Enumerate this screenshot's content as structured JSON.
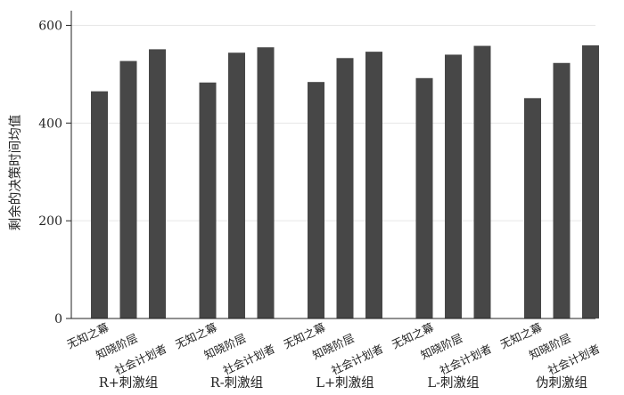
{
  "chart_data": {
    "type": "bar",
    "ylabel": "剩余的决策时间均值",
    "ylim": [
      0,
      630
    ],
    "yticks": [
      0,
      200,
      400,
      600
    ],
    "grid": true,
    "groups": [
      {
        "label": "R+刺激组",
        "categories": [
          "无知之幕",
          "知晓阶层",
          "社会计划者"
        ],
        "values": [
          465,
          527,
          551
        ]
      },
      {
        "label": "R-刺激组",
        "categories": [
          "无知之幕",
          "知晓阶层",
          "社会计划者"
        ],
        "values": [
          483,
          544,
          555
        ]
      },
      {
        "label": "L+刺激组",
        "categories": [
          "无知之幕",
          "知晓阶层",
          "社会计划者"
        ],
        "values": [
          484,
          533,
          546
        ]
      },
      {
        "label": "L-刺激组",
        "categories": [
          "无知之幕",
          "知晓阶层",
          "社会计划者"
        ],
        "values": [
          492,
          540,
          558
        ]
      },
      {
        "label": "伪刺激组",
        "categories": [
          "无知之幕",
          "知晓阶层",
          "社会计划者"
        ],
        "values": [
          451,
          523,
          559
        ]
      }
    ],
    "colors": {
      "bar": "#474747",
      "axis": "#222222",
      "grid": "#e6e6e6"
    }
  }
}
